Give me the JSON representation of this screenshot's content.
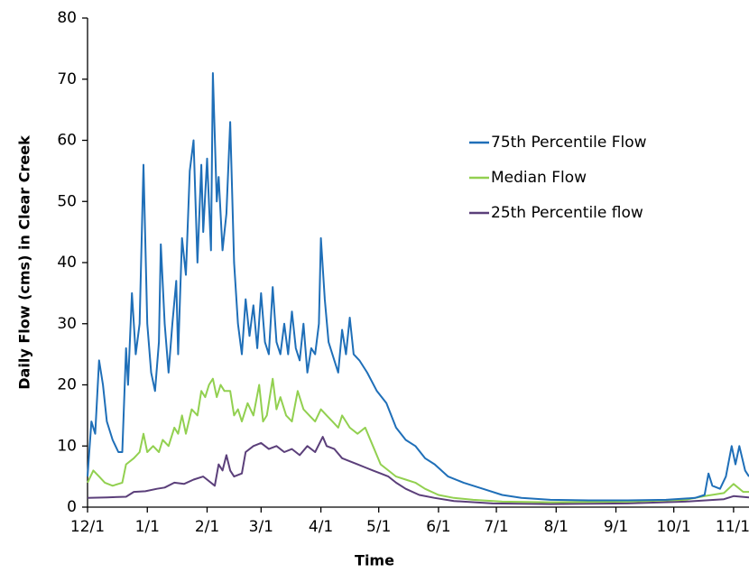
{
  "chart_data": {
    "type": "line",
    "x_label": "Time",
    "y_label": "Daily Flow (cms) in Clear Creek",
    "xlim": [
      0,
      343
    ],
    "xticks": [
      {
        "value": 0,
        "label": "12/1"
      },
      {
        "value": 31,
        "label": "1/1"
      },
      {
        "value": 62,
        "label": "2/1"
      },
      {
        "value": 90,
        "label": "3/1"
      },
      {
        "value": 121,
        "label": "4/1"
      },
      {
        "value": 151,
        "label": "5/1"
      },
      {
        "value": 182,
        "label": "6/1"
      },
      {
        "value": 212,
        "label": "7/1"
      },
      {
        "value": 243,
        "label": "8/1"
      },
      {
        "value": 274,
        "label": "9/1"
      },
      {
        "value": 304,
        "label": "10/1"
      },
      {
        "value": 335,
        "label": "11/1"
      }
    ],
    "ylim": [
      0,
      80
    ],
    "yticks": [
      0,
      10,
      20,
      30,
      40,
      50,
      60,
      70,
      80
    ],
    "grid": false,
    "legend": "upper right",
    "series": [
      {
        "name": "75th Percentile Flow",
        "color": "#1f6fb8",
        "x": [
          0,
          2,
          4,
          6,
          8,
          10,
          13,
          16,
          18,
          20,
          21,
          23,
          25,
          27,
          29,
          31,
          33,
          35,
          37,
          38,
          40,
          42,
          44,
          46,
          47,
          49,
          51,
          53,
          55,
          57,
          59,
          60,
          62,
          64,
          65,
          67,
          68,
          70,
          72,
          74,
          76,
          78,
          80,
          82,
          84,
          86,
          88,
          90,
          92,
          94,
          96,
          98,
          100,
          102,
          104,
          106,
          108,
          110,
          112,
          114,
          116,
          118,
          120,
          121,
          123,
          125,
          128,
          130,
          132,
          134,
          136,
          138,
          141,
          145,
          150,
          155,
          160,
          165,
          170,
          175,
          180,
          187,
          195,
          205,
          215,
          225,
          240,
          260,
          280,
          300,
          315,
          320,
          322,
          324,
          328,
          331,
          334,
          336,
          338,
          341,
          343
        ],
        "values": [
          5,
          14,
          12,
          24,
          20,
          14,
          11,
          9,
          9,
          26,
          20,
          35,
          25,
          30,
          56,
          30,
          22,
          19,
          27,
          43,
          30,
          22,
          30,
          37,
          25,
          44,
          38,
          55,
          60,
          40,
          56,
          45,
          57,
          42,
          71,
          50,
          54,
          42,
          48,
          63,
          40,
          30,
          25,
          34,
          28,
          33,
          26,
          35,
          27,
          25,
          36,
          27,
          25,
          30,
          25,
          32,
          26,
          24,
          30,
          22,
          26,
          25,
          30,
          44,
          34,
          27,
          24,
          22,
          29,
          25,
          31,
          25,
          24,
          22,
          19,
          17,
          13,
          11,
          10,
          8,
          7,
          5,
          4,
          3,
          2,
          1.5,
          1.2,
          1.1,
          1.1,
          1.2,
          1.5,
          2,
          5.5,
          3.5,
          3,
          5,
          10,
          7,
          10,
          6,
          5
        ]
      },
      {
        "name": "Median Flow",
        "color": "#92d050",
        "x": [
          0,
          3,
          6,
          9,
          13,
          18,
          20,
          24,
          27,
          29,
          31,
          34,
          37,
          39,
          42,
          45,
          47,
          49,
          51,
          54,
          57,
          59,
          61,
          63,
          65,
          67,
          69,
          71,
          74,
          76,
          78,
          80,
          83,
          86,
          89,
          91,
          93,
          96,
          98,
          100,
          103,
          106,
          109,
          112,
          115,
          118,
          121,
          124,
          127,
          130,
          132,
          136,
          140,
          144,
          148,
          152,
          156,
          160,
          165,
          170,
          175,
          182,
          190,
          200,
          215,
          240,
          280,
          310,
          320,
          330,
          335,
          340,
          343
        ],
        "values": [
          4,
          6,
          5,
          4,
          3.5,
          4,
          7,
          8,
          9,
          12,
          9,
          10,
          9,
          11,
          10,
          13,
          12,
          15,
          12,
          16,
          15,
          19,
          18,
          20,
          21,
          18,
          20,
          19,
          19,
          15,
          16,
          14,
          17,
          15,
          20,
          14,
          15,
          21,
          16,
          18,
          15,
          14,
          19,
          16,
          15,
          14,
          16,
          15,
          14,
          13,
          15,
          13,
          12,
          13,
          10,
          7,
          6,
          5,
          4.5,
          4,
          3,
          2,
          1.5,
          1.2,
          0.9,
          0.8,
          0.9,
          1.2,
          1.8,
          2.3,
          3.8,
          2.5,
          2.5
        ]
      },
      {
        "name": "25th Percentile flow",
        "color": "#5b3f7a",
        "x": [
          0,
          10,
          20,
          24,
          30,
          36,
          40,
          45,
          50,
          55,
          60,
          62,
          66,
          68,
          70,
          72,
          74,
          76,
          80,
          82,
          86,
          90,
          94,
          98,
          102,
          106,
          110,
          114,
          118,
          122,
          124,
          128,
          132,
          136,
          140,
          144,
          148,
          152,
          156,
          160,
          165,
          172,
          180,
          190,
          210,
          240,
          280,
          310,
          330,
          335,
          343
        ],
        "values": [
          1.5,
          1.6,
          1.7,
          2.5,
          2.6,
          3,
          3.2,
          4,
          3.8,
          4.5,
          5,
          4.5,
          3.5,
          7,
          6,
          8.5,
          6,
          5,
          5.5,
          9,
          10,
          10.5,
          9.5,
          10,
          9,
          9.5,
          8.5,
          10,
          9,
          11.5,
          10,
          9.5,
          8,
          7.5,
          7,
          6.5,
          6,
          5.5,
          5,
          4,
          3,
          2,
          1.5,
          1,
          0.6,
          0.5,
          0.6,
          0.9,
          1.3,
          1.8,
          1.6
        ]
      }
    ]
  }
}
